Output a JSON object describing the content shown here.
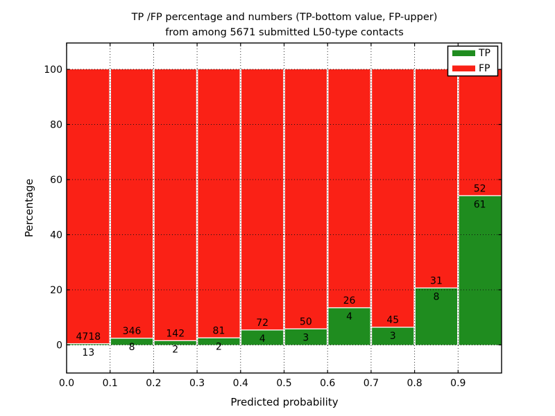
{
  "chart_data": {
    "type": "bar",
    "stacked": true,
    "normalized": "percent",
    "title_line1": "TP /FP percentage and numbers (TP-bottom value, FP-upper)",
    "title_line2": "from among 5671 submitted L50-type contacts",
    "total_contacts": 5671,
    "xlabel": "Predicted probability",
    "ylabel": "Percentage",
    "x_tick_labels": [
      "0.0",
      "0.1",
      "0.2",
      "0.3",
      "0.4",
      "0.5",
      "0.6",
      "0.7",
      "0.8",
      "0.9"
    ],
    "y_ticks": [
      0,
      20,
      40,
      60,
      80,
      100
    ],
    "y_tick_labels": [
      "0",
      "20",
      "40",
      "60",
      "80",
      "100"
    ],
    "xlim": [
      0.0,
      1.0
    ],
    "ylim": [
      -10.2,
      109.6
    ],
    "bin_width": 0.1,
    "grid": "dotted",
    "categories": [
      "0.0-0.1",
      "0.1-0.2",
      "0.2-0.3",
      "0.3-0.4",
      "0.4-0.5",
      "0.5-0.6",
      "0.6-0.7",
      "0.7-0.8",
      "0.8-0.9",
      "0.9-1.0"
    ],
    "series": [
      {
        "name": "TP",
        "color": "#1f8c1f",
        "values": [
          13,
          8,
          2,
          2,
          4,
          3,
          4,
          3,
          8,
          61
        ]
      },
      {
        "name": "FP",
        "color": "#fa2116",
        "values": [
          4718,
          346,
          142,
          81,
          72,
          50,
          26,
          45,
          31,
          52
        ]
      }
    ],
    "tp_percent": [
      0.27,
      2.26,
      1.39,
      2.41,
      5.26,
      5.66,
      13.33,
      6.25,
      20.51,
      53.98
    ],
    "legend": {
      "position": "upper right",
      "entries": [
        {
          "label": "TP",
          "color": "#1f8c1f"
        },
        {
          "label": "FP",
          "color": "#fa2116"
        }
      ]
    },
    "colors": {
      "tp_green": "#1f8c1f",
      "fp_red": "#fa2116",
      "grid": "#111111",
      "spine": "#000000",
      "background": "#ffffff"
    }
  }
}
